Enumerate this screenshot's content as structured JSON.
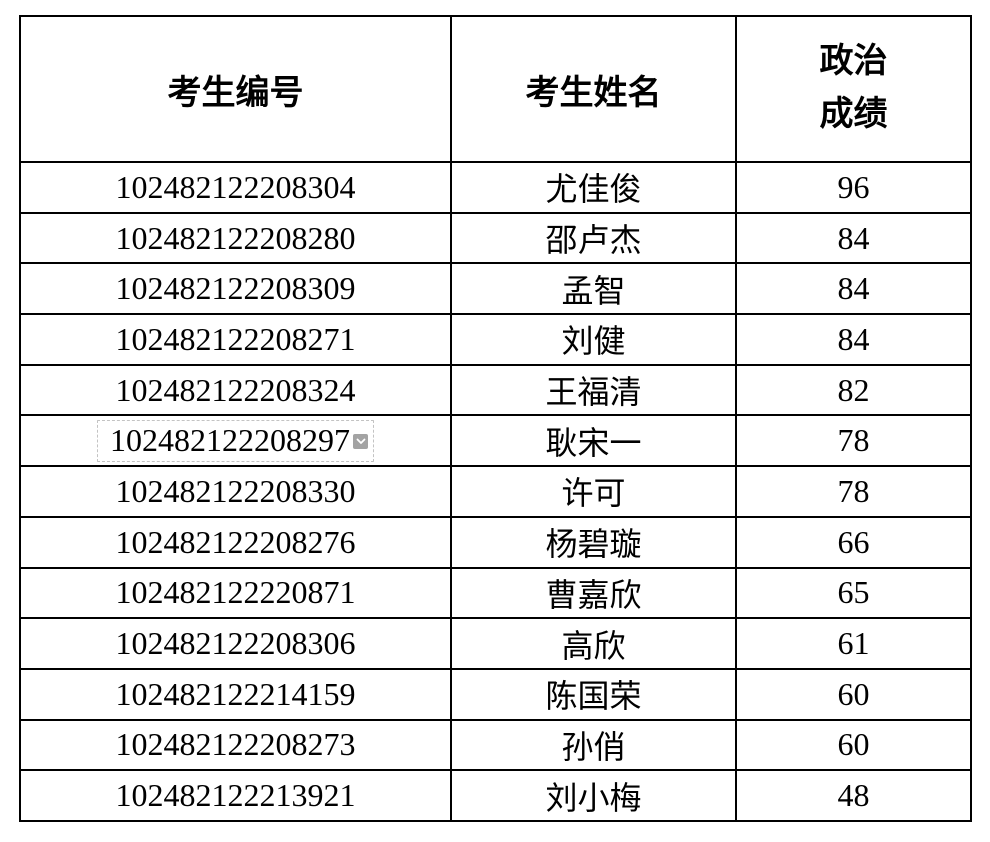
{
  "table": {
    "headers": {
      "candidate_id": "考生编号",
      "candidate_name": "考生姓名",
      "politics_score_line1": "政治",
      "politics_score_line2": "成绩"
    },
    "rows": [
      {
        "id": "102482122208304",
        "name": "尤佳俊",
        "score": "96",
        "selected": false
      },
      {
        "id": "102482122208280",
        "name": "邵卢杰",
        "score": "84",
        "selected": false
      },
      {
        "id": "102482122208309",
        "name": "孟智",
        "score": "84",
        "selected": false
      },
      {
        "id": "102482122208271",
        "name": "刘健",
        "score": "84",
        "selected": false
      },
      {
        "id": "102482122208324",
        "name": "王福清",
        "score": "82",
        "selected": false
      },
      {
        "id": "102482122208297",
        "name": "耿宋一",
        "score": "78",
        "selected": true
      },
      {
        "id": "102482122208330",
        "name": "许可",
        "score": "78",
        "selected": false
      },
      {
        "id": "102482122208276",
        "name": "杨碧璇",
        "score": "66",
        "selected": false
      },
      {
        "id": "102482122220871",
        "name": "曹嘉欣",
        "score": "65",
        "selected": false
      },
      {
        "id": "102482122208306",
        "name": "高欣",
        "score": "61",
        "selected": false
      },
      {
        "id": "102482122214159",
        "name": "陈国荣",
        "score": "60",
        "selected": false
      },
      {
        "id": "102482122208273",
        "name": "孙俏",
        "score": "60",
        "selected": false
      },
      {
        "id": "102482122213921",
        "name": "刘小梅",
        "score": "48",
        "selected": false
      }
    ]
  },
  "colors": {
    "border": "#000000",
    "dropdown_button_bg": "#a3a3a3",
    "dropdown_dash_border": "#c3c3c3",
    "text": "#000000",
    "background": "#ffffff"
  },
  "icons": {
    "dropdown_chevron": "chevron-down"
  }
}
